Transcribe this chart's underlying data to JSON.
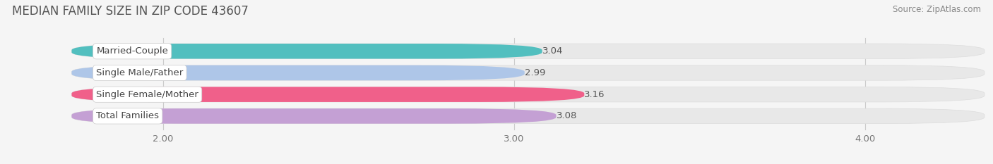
{
  "title": "MEDIAN FAMILY SIZE IN ZIP CODE 43607",
  "source": "Source: ZipAtlas.com",
  "categories": [
    "Married-Couple",
    "Single Male/Father",
    "Single Female/Mother",
    "Total Families"
  ],
  "values": [
    3.04,
    2.99,
    3.16,
    3.08
  ],
  "bar_colors": [
    "#52bfbf",
    "#aec6e8",
    "#f0608a",
    "#c4a0d4"
  ],
  "bar_height": 0.62,
  "xlim": [
    1.55,
    4.35
  ],
  "xstart": 1.78,
  "xticks": [
    2.0,
    3.0,
    4.0
  ],
  "xtick_labels": [
    "2.00",
    "3.00",
    "4.00"
  ],
  "background_color": "#f5f5f5",
  "bar_bg_color": "#e8e8e8",
  "label_fontsize": 9.5,
  "value_fontsize": 9.5,
  "title_fontsize": 12,
  "source_fontsize": 8.5,
  "title_color": "#555555",
  "label_color": "#444444",
  "value_color": "#555555",
  "source_color": "#888888"
}
